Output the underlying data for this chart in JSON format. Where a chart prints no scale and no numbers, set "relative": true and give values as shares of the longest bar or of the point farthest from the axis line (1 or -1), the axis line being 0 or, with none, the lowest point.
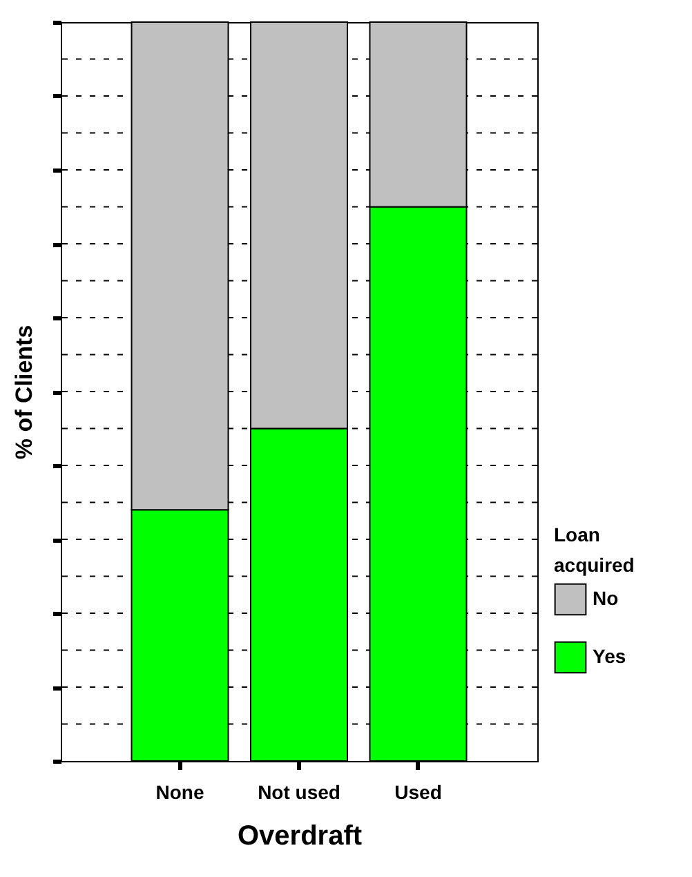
{
  "chart_data": {
    "type": "bar",
    "stacked": true,
    "relative": true,
    "xlabel": "Overdraft",
    "ylabel": "% of Clients",
    "legend_title": "Loan acquired",
    "categories": [
      "None",
      "Not used",
      "Used"
    ],
    "series": [
      {
        "name": "Yes",
        "color": "#00ff00",
        "values": [
          0.34,
          0.45,
          0.75
        ]
      },
      {
        "name": "No",
        "color": "#c0c0c0",
        "values": [
          0.66,
          0.55,
          0.25
        ]
      }
    ],
    "grid": "y",
    "legend": "bottom right"
  }
}
